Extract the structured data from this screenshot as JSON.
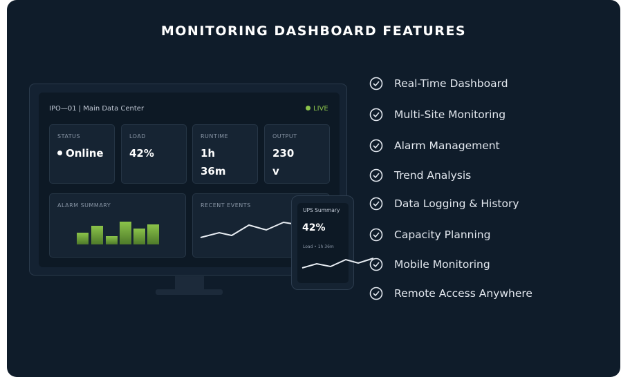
{
  "title": "MONITORING DASHBOARD FEATURES",
  "monitor": {
    "header": "IPO—01 | Main Data Center",
    "status": "LIVE",
    "stats": [
      {
        "label": "STATUS",
        "value": "Online"
      },
      {
        "label": "LOAD",
        "value": "42%"
      },
      {
        "label": "RUNTIME",
        "value": "1h 36m"
      },
      {
        "label": "OUTPUT",
        "value": "230 v"
      }
    ],
    "alarm_summary": "ALARM SUMMARY",
    "recent_events": "RECENT EVENTS"
  },
  "phone": {
    "title": "UPS Summary",
    "value": "42%",
    "subtitle": "Load • 1h 36m"
  },
  "features": [
    "Real-Time Dashboard",
    "Multi-Site Monitoring",
    "Alarm Management",
    "Trend Analysis",
    "Data Logging & History",
    "Capacity Planning",
    "Mobile Monitoring",
    "Remote Access Anywhere"
  ]
}
